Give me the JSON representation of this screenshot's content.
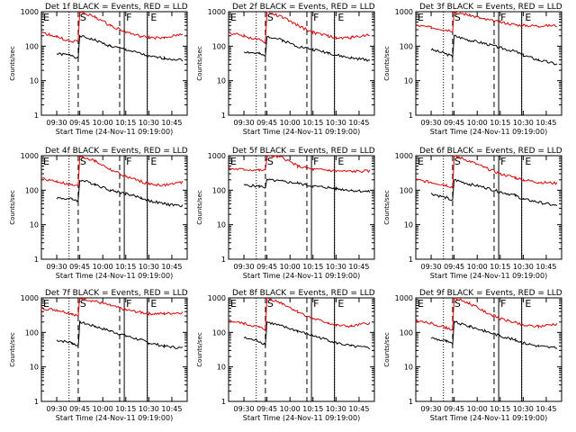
{
  "colors": {
    "events": "#000000",
    "lld": "#e00000",
    "axis": "#000000",
    "background": "#ffffff"
  },
  "shared": {
    "ylabel": "Counts/sec",
    "xlabel": "Start Time (24-Nov-11 09:19:00)",
    "x_ticks": [
      "09:30",
      "09:45",
      "10:00",
      "10:15",
      "10:30",
      "10:45"
    ],
    "y_ticks": [
      "1",
      "10",
      "100",
      "1000"
    ],
    "interval_labels": [
      "E",
      "S",
      "F",
      "E"
    ]
  },
  "chart_data": [
    {
      "type": "line",
      "title": "Det 1f BLACK = Events, RED = LLD",
      "y_scale": "log",
      "ylim": [
        1,
        1000
      ],
      "x": [
        "09:20",
        "09:30",
        "09:40",
        "09:44",
        "09:45",
        "09:55",
        "10:05",
        "10:15",
        "10:25",
        "10:30",
        "10:40",
        "10:52"
      ],
      "series": [
        {
          "name": "Events",
          "values": [
            null,
            60,
            55,
            45,
            200,
            150,
            100,
            80,
            60,
            50,
            45,
            40
          ]
        },
        {
          "name": "LLD",
          "values": [
            250,
            190,
            130,
            150,
            1000,
            700,
            400,
            260,
            190,
            180,
            170,
            230
          ]
        }
      ]
    },
    {
      "type": "line",
      "title": "Det 2f BLACK = Events, RED = LLD",
      "y_scale": "log",
      "ylim": [
        1,
        1000
      ],
      "x": [
        "09:20",
        "09:30",
        "09:40",
        "09:44",
        "09:45",
        "09:55",
        "10:05",
        "10:15",
        "10:25",
        "10:30",
        "10:40",
        "10:52"
      ],
      "series": [
        {
          "name": "Events",
          "values": [
            null,
            70,
            60,
            50,
            200,
            150,
            100,
            80,
            65,
            55,
            45,
            40
          ]
        },
        {
          "name": "LLD",
          "values": [
            250,
            200,
            150,
            130,
            1000,
            700,
            400,
            250,
            200,
            170,
            180,
            220
          ]
        }
      ]
    },
    {
      "type": "line",
      "title": "Det 3f BLACK = Events, RED = LLD",
      "y_scale": "log",
      "ylim": [
        1,
        1000
      ],
      "x": [
        "09:20",
        "09:30",
        "09:40",
        "09:44",
        "09:45",
        "09:55",
        "10:05",
        "10:15",
        "10:25",
        "10:30",
        "10:40",
        "10:52"
      ],
      "series": [
        {
          "name": "Events",
          "values": [
            null,
            80,
            60,
            50,
            200,
            150,
            120,
            90,
            70,
            55,
            40,
            30
          ]
        },
        {
          "name": "LLD",
          "values": [
            400,
            350,
            300,
            280,
            1000,
            800,
            600,
            500,
            420,
            400,
            390,
            400
          ]
        }
      ]
    },
    {
      "type": "line",
      "title": "Det 4f BLACK = Events, RED = LLD",
      "y_scale": "log",
      "ylim": [
        1,
        1000
      ],
      "x": [
        "09:20",
        "09:30",
        "09:40",
        "09:44",
        "09:45",
        "09:55",
        "10:05",
        "10:15",
        "10:25",
        "10:30",
        "10:40",
        "10:52"
      ],
      "series": [
        {
          "name": "Events",
          "values": [
            null,
            60,
            55,
            50,
            200,
            150,
            100,
            80,
            60,
            50,
            40,
            35
          ]
        },
        {
          "name": "LLD",
          "values": [
            220,
            180,
            140,
            130,
            1000,
            700,
            400,
            250,
            180,
            150,
            140,
            170
          ]
        }
      ]
    },
    {
      "type": "line",
      "title": "Det 5f BLACK = Events, RED = LLD",
      "y_scale": "log",
      "ylim": [
        1,
        1000
      ],
      "x": [
        "09:20",
        "09:30",
        "09:40",
        "09:44",
        "09:45",
        "09:55",
        "10:05",
        "10:15",
        "10:25",
        "10:30",
        "10:40",
        "10:52"
      ],
      "series": [
        {
          "name": "Events",
          "values": [
            null,
            140,
            130,
            120,
            200,
            180,
            160,
            130,
            120,
            110,
            100,
            90
          ]
        },
        {
          "name": "LLD",
          "values": [
            420,
            400,
            380,
            380,
            1000,
            900,
            500,
            400,
            380,
            360,
            350,
            360
          ]
        }
      ]
    },
    {
      "type": "line",
      "title": "Det 6f BLACK = Events, RED = LLD",
      "y_scale": "log",
      "ylim": [
        1,
        1000
      ],
      "x": [
        "09:20",
        "09:30",
        "09:40",
        "09:44",
        "09:45",
        "09:55",
        "10:05",
        "10:15",
        "10:25",
        "10:30",
        "10:40",
        "10:52"
      ],
      "series": [
        {
          "name": "Events",
          "values": [
            null,
            80,
            60,
            50,
            200,
            150,
            120,
            90,
            70,
            55,
            45,
            35
          ]
        },
        {
          "name": "LLD",
          "values": [
            200,
            170,
            140,
            120,
            1000,
            700,
            450,
            300,
            230,
            200,
            170,
            160
          ]
        }
      ]
    },
    {
      "type": "line",
      "title": "Det 7f BLACK = Events, RED = LLD",
      "y_scale": "log",
      "ylim": [
        1,
        1000
      ],
      "x": [
        "09:20",
        "09:30",
        "09:40",
        "09:44",
        "09:45",
        "09:55",
        "10:05",
        "10:15",
        "10:25",
        "10:30",
        "10:40",
        "10:52"
      ],
      "series": [
        {
          "name": "Events",
          "values": [
            null,
            60,
            50,
            40,
            200,
            150,
            110,
            80,
            60,
            50,
            40,
            35
          ]
        },
        {
          "name": "LLD",
          "values": [
            500,
            450,
            350,
            300,
            1000,
            800,
            600,
            450,
            380,
            350,
            350,
            380
          ]
        }
      ]
    },
    {
      "type": "line",
      "title": "Det 8f BLACK = Events, RED = LLD",
      "y_scale": "log",
      "ylim": [
        1,
        1000
      ],
      "x": [
        "09:20",
        "09:30",
        "09:40",
        "09:44",
        "09:45",
        "09:55",
        "10:05",
        "10:15",
        "10:25",
        "10:30",
        "10:40",
        "10:52"
      ],
      "series": [
        {
          "name": "Events",
          "values": [
            null,
            70,
            55,
            45,
            200,
            150,
            110,
            80,
            60,
            50,
            40,
            35
          ]
        },
        {
          "name": "LLD",
          "values": [
            220,
            180,
            140,
            120,
            1000,
            700,
            400,
            250,
            190,
            160,
            150,
            190
          ]
        }
      ]
    },
    {
      "type": "line",
      "title": "Det 9f BLACK = Events, RED = LLD",
      "y_scale": "log",
      "ylim": [
        1,
        1000
      ],
      "x": [
        "09:20",
        "09:30",
        "09:40",
        "09:44",
        "09:45",
        "09:55",
        "10:05",
        "10:15",
        "10:25",
        "10:30",
        "10:40",
        "10:52"
      ],
      "series": [
        {
          "name": "Events",
          "values": [
            null,
            70,
            55,
            45,
            200,
            150,
            110,
            80,
            60,
            50,
            40,
            35
          ]
        },
        {
          "name": "LLD",
          "values": [
            220,
            180,
            140,
            120,
            1000,
            700,
            400,
            250,
            190,
            160,
            150,
            180
          ]
        }
      ]
    }
  ]
}
